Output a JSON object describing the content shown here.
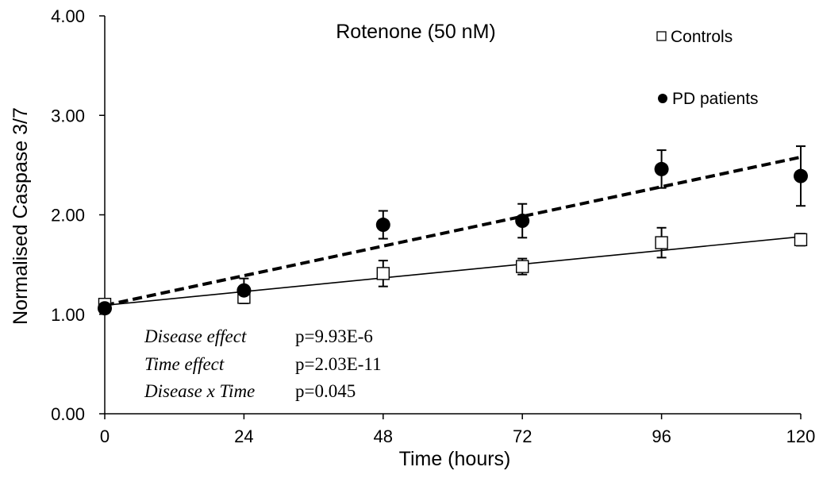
{
  "chart_data": {
    "type": "scatter",
    "title": "Rotenone (50 nM)",
    "xlabel": "Time (hours)",
    "ylabel": "Normalised Caspase 3/7",
    "xlim": [
      0,
      120
    ],
    "ylim": [
      0,
      4
    ],
    "x_ticks": [
      "0",
      "24",
      "48",
      "72",
      "96",
      "120"
    ],
    "y_ticks": [
      "0.00",
      "1.00",
      "2.00",
      "3.00",
      "4.00"
    ],
    "grid": false,
    "legend_position": "top-right",
    "series": [
      {
        "name": "Controls",
        "marker": "open-square",
        "color": "#000000",
        "x": [
          0,
          24,
          48,
          72,
          96,
          120
        ],
        "y": [
          1.1,
          1.17,
          1.41,
          1.48,
          1.72,
          1.75
        ],
        "err_up": [
          0.02,
          0.06,
          0.13,
          0.08,
          0.15,
          0.06
        ],
        "err_down": [
          0.02,
          0.06,
          0.13,
          0.08,
          0.15,
          0.06
        ],
        "trendline": {
          "style": "solid",
          "y_start": 1.09,
          "y_end": 1.78
        }
      },
      {
        "name": "PD patients",
        "marker": "filled-circle",
        "color": "#000000",
        "x": [
          0,
          24,
          48,
          72,
          96,
          120
        ],
        "y": [
          1.06,
          1.24,
          1.9,
          1.94,
          2.46,
          2.39
        ],
        "err_up": [
          0.02,
          0.12,
          0.14,
          0.17,
          0.19,
          0.3
        ],
        "err_down": [
          0.02,
          0.12,
          0.14,
          0.17,
          0.19,
          0.3
        ],
        "trendline": {
          "style": "dashed",
          "y_start": 1.09,
          "y_end": 2.58
        }
      }
    ],
    "annotations": [
      {
        "label": "Disease effect",
        "value": "p=9.93E-6"
      },
      {
        "label": "Time effect",
        "value": "p=2.03E-11"
      },
      {
        "label": "Disease x Time",
        "value": "p=0.045"
      }
    ]
  }
}
